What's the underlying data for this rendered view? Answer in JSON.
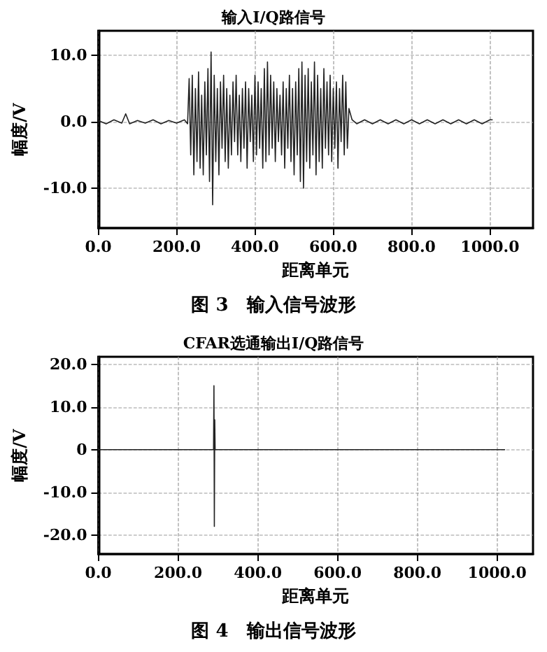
{
  "chart_data": [
    {
      "type": "line",
      "title": "输入I/Q路信号",
      "xlabel": "距离单元",
      "ylabel": "幅度/V",
      "color": "#222222",
      "marker": "none",
      "grid": true,
      "xlim": [
        0,
        1110
      ],
      "ylim": [
        -16,
        13.7
      ],
      "xticks": [
        {
          "value": 0,
          "label": "0.0"
        },
        {
          "value": 200,
          "label": "200.0"
        },
        {
          "value": 400,
          "label": "400.0"
        },
        {
          "value": 600,
          "label": "600.0"
        },
        {
          "value": 800,
          "label": "800.0"
        },
        {
          "value": 1000,
          "label": "1000.0"
        }
      ],
      "yticks": [
        {
          "value": -10,
          "label": "-10.0"
        },
        {
          "value": 0,
          "label": "0.0"
        },
        {
          "value": 10,
          "label": "10.0"
        }
      ],
      "annotations": [
        "图 3　输入信号波形"
      ],
      "x": [
        0,
        20,
        40,
        60,
        70,
        80,
        100,
        120,
        140,
        160,
        180,
        200,
        220,
        228,
        232,
        236,
        240,
        244,
        248,
        252,
        256,
        260,
        264,
        268,
        272,
        276,
        280,
        284,
        288,
        292,
        296,
        300,
        304,
        308,
        312,
        316,
        320,
        324,
        328,
        332,
        336,
        340,
        344,
        348,
        352,
        356,
        360,
        364,
        368,
        372,
        376,
        380,
        384,
        388,
        392,
        396,
        400,
        404,
        408,
        412,
        416,
        420,
        424,
        428,
        432,
        436,
        440,
        444,
        448,
        452,
        456,
        460,
        464,
        468,
        472,
        476,
        480,
        484,
        488,
        492,
        496,
        500,
        504,
        508,
        512,
        516,
        520,
        524,
        528,
        532,
        536,
        540,
        544,
        548,
        552,
        556,
        560,
        564,
        568,
        572,
        576,
        580,
        584,
        588,
        592,
        596,
        600,
        604,
        608,
        612,
        616,
        620,
        624,
        628,
        632,
        636,
        640,
        648,
        660,
        680,
        700,
        720,
        740,
        760,
        780,
        800,
        820,
        840,
        860,
        880,
        900,
        920,
        940,
        960,
        980,
        1000,
        1007
      ],
      "values": [
        0.2,
        -0.3,
        0.3,
        -0.2,
        1.2,
        -0.3,
        0.2,
        -0.2,
        0.3,
        -0.3,
        0.2,
        -0.2,
        0.3,
        -0.3,
        6.5,
        -5,
        7,
        -8,
        5,
        -6,
        7.5,
        -7,
        4,
        -8,
        6,
        -5,
        8,
        -9,
        10.5,
        -12.5,
        7,
        -6,
        5,
        -8,
        6,
        -4,
        7,
        -6,
        5,
        -7,
        4,
        -5,
        6,
        -3,
        7,
        -5,
        4,
        -6,
        5,
        -4,
        6,
        -7,
        5,
        -3,
        4,
        -6,
        7,
        -5,
        6,
        -4,
        5,
        -7,
        8,
        -6,
        9,
        -5,
        7,
        -4,
        6,
        -6,
        5,
        -3,
        4,
        -5,
        6,
        -7,
        5,
        -4,
        7,
        -6,
        5,
        -8,
        6,
        -5,
        8,
        -9,
        9,
        -10,
        7,
        -6,
        8,
        -7,
        6,
        -5,
        9,
        -8,
        7,
        -6,
        5,
        -7,
        8,
        -4,
        6,
        -5,
        7,
        -6,
        5,
        -4,
        6,
        -7,
        5,
        -3,
        7,
        -5,
        6,
        -4,
        2,
        0.3,
        -0.3,
        0.3,
        -0.3,
        0.3,
        -0.3,
        0.3,
        -0.3,
        0.3,
        -0.3,
        0.3,
        -0.3,
        0.3,
        -0.3,
        0.3,
        -0.3,
        0.3,
        -0.3,
        0.3,
        0.3
      ]
    },
    {
      "type": "line",
      "title": "CFAR选通输出I/Q路信号",
      "xlabel": "距离单元",
      "ylabel": "幅度/V",
      "color": "#222222",
      "marker": "none",
      "grid": true,
      "xlim": [
        0,
        1090
      ],
      "ylim": [
        -24.5,
        21.8
      ],
      "xticks": [
        {
          "value": 0,
          "label": "0.0"
        },
        {
          "value": 200,
          "label": "200.0"
        },
        {
          "value": 400,
          "label": "400.0"
        },
        {
          "value": 600,
          "label": "600.0"
        },
        {
          "value": 800,
          "label": "800.0"
        },
        {
          "value": 1000,
          "label": "1000.0"
        }
      ],
      "yticks": [
        {
          "value": -20,
          "label": "-20.0"
        },
        {
          "value": -10,
          "label": "-10.0"
        },
        0,
        {
          "value": 10,
          "label": "10.0"
        },
        {
          "value": 20,
          "label": "20.0"
        }
      ],
      "annotations": [
        "图 4　输出信号波形"
      ],
      "x": [
        0,
        289,
        290,
        291,
        292,
        293,
        1020
      ],
      "values": [
        0,
        0,
        15,
        -18,
        7,
        0,
        0
      ]
    }
  ]
}
